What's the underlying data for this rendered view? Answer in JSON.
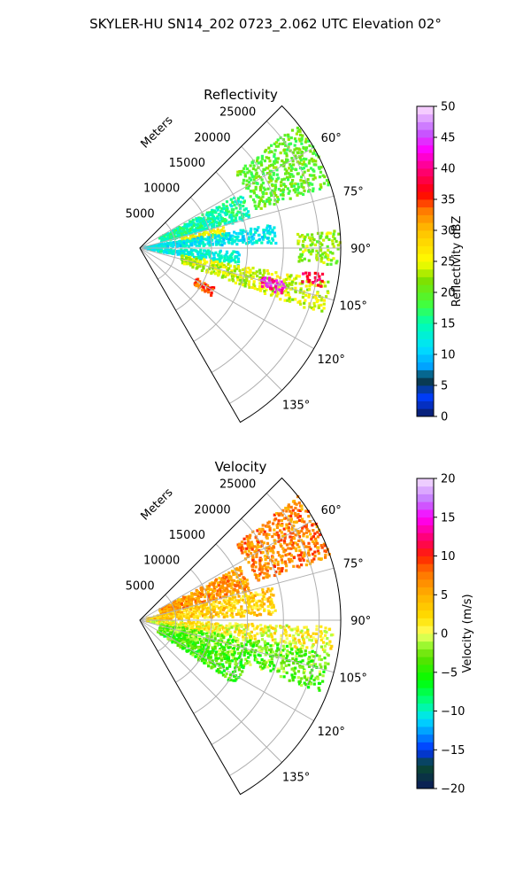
{
  "figure": {
    "suptitle": "SKYLER-HU  SN14_202  0723_2.062 UTC Elevation 02°"
  },
  "chart_data": [
    {
      "type": "heatmap",
      "projection": "polar-sector",
      "title": "Reflectivity",
      "range_label": "Meters",
      "range_ticks": [
        5000,
        10000,
        15000,
        20000,
        25000
      ],
      "range_tick_labels": [
        "5000",
        "10000",
        "15000",
        "20000",
        "25000"
      ],
      "rmax": 28000,
      "azimuth_range_deg": [
        45,
        150
      ],
      "azimuth_ticks": [
        60,
        75,
        90,
        105,
        120,
        135
      ],
      "azimuth_tick_labels": [
        "60°",
        "75°",
        "90°",
        "105°",
        "120°",
        "135°"
      ],
      "grid": true,
      "colorbar": {
        "label": "Reflectivity dBZ",
        "min": 0,
        "max": 50,
        "ticks": [
          0,
          5,
          10,
          15,
          20,
          25,
          30,
          35,
          40,
          45,
          50
        ],
        "tick_labels": [
          "0",
          "5",
          "10",
          "15",
          "20",
          "25",
          "30",
          "35",
          "40",
          "45",
          "50"
        ]
      },
      "echo_regions": [
        {
          "az": [
            52,
            72
          ],
          "r": [
            17000,
            28000
          ],
          "value": 20
        },
        {
          "az": [
            62,
            75
          ],
          "r": [
            3000,
            16000
          ],
          "value": 15
        },
        {
          "az": [
            76,
            82
          ],
          "r": [
            6000,
            12000
          ],
          "value": 26
        },
        {
          "az": [
            80,
            88
          ],
          "r": [
            500,
            19000
          ],
          "value": 12
        },
        {
          "az": [
            92,
            100
          ],
          "r": [
            1000,
            14000
          ],
          "value": 13
        },
        {
          "az": [
            100,
            110
          ],
          "r": [
            6000,
            27000
          ],
          "value": 24
        },
        {
          "az": [
            103,
            108
          ],
          "r": [
            17500,
            21000
          ],
          "value": 42
        },
        {
          "az": [
            98,
            102
          ],
          "r": [
            23000,
            26000
          ],
          "value": 38
        },
        {
          "az": [
            118,
            124
          ],
          "r": [
            9000,
            12000
          ],
          "value": 34
        },
        {
          "az": [
            85,
            95
          ],
          "r": [
            22000,
            28000
          ],
          "value": 22
        }
      ]
    },
    {
      "type": "heatmap",
      "projection": "polar-sector",
      "title": "Velocity",
      "range_label": "Meters",
      "range_ticks": [
        5000,
        10000,
        15000,
        20000,
        25000
      ],
      "range_tick_labels": [
        "5000",
        "10000",
        "15000",
        "20000",
        "25000"
      ],
      "rmax": 28000,
      "azimuth_range_deg": [
        45,
        150
      ],
      "azimuth_ticks": [
        60,
        75,
        90,
        105,
        120,
        135
      ],
      "azimuth_tick_labels": [
        "60°",
        "75°",
        "90°",
        "105°",
        "120°",
        "135°"
      ],
      "grid": true,
      "colorbar": {
        "label": "Velocity (m/s)",
        "min": -20,
        "max": 20,
        "ticks": [
          -20,
          -15,
          -10,
          -5,
          0,
          5,
          10,
          15,
          20
        ],
        "tick_labels": [
          "−20",
          "−15",
          "−10",
          "−5",
          "0",
          "5",
          "10",
          "15",
          "20"
        ]
      },
      "echo_regions": [
        {
          "az": [
            52,
            72
          ],
          "r": [
            17000,
            28000
          ],
          "value": 7
        },
        {
          "az": [
            62,
            75
          ],
          "r": [
            3000,
            16000
          ],
          "value": 6
        },
        {
          "az": [
            76,
            88
          ],
          "r": [
            1000,
            19000
          ],
          "value": 3
        },
        {
          "az": [
            92,
            100
          ],
          "r": [
            1000,
            27000
          ],
          "value": 1
        },
        {
          "az": [
            100,
            112
          ],
          "r": [
            3000,
            27000
          ],
          "value": -3
        },
        {
          "az": [
            112,
            124
          ],
          "r": [
            3000,
            16000
          ],
          "value": -4
        }
      ]
    }
  ]
}
